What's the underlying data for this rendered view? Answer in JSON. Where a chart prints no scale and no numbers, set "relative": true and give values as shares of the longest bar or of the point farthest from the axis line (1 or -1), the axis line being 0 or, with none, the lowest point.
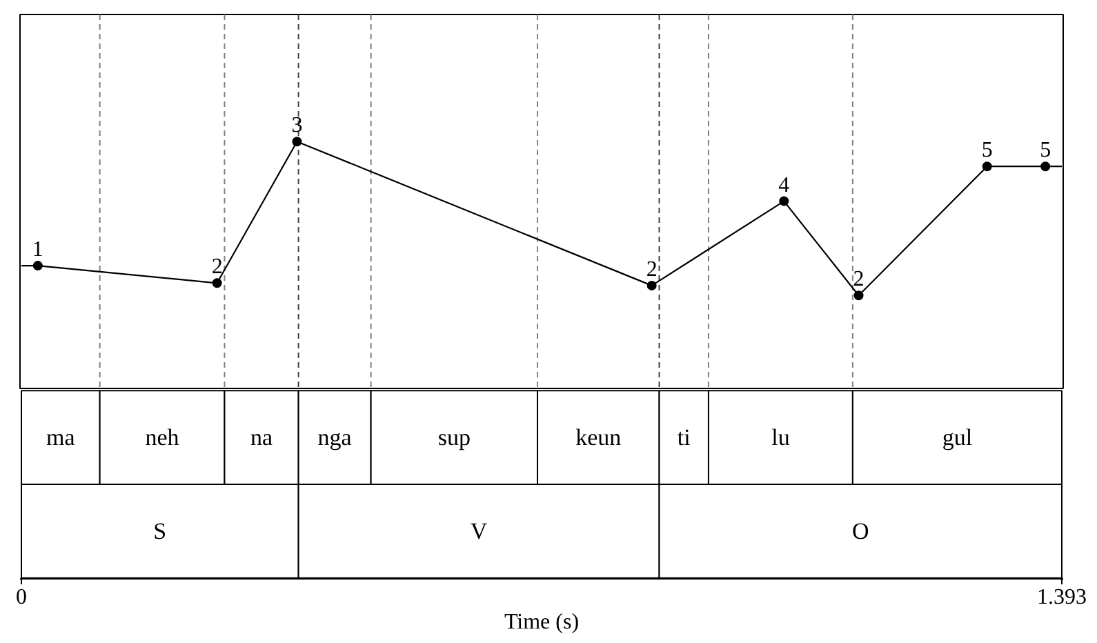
{
  "chart_data": [
    {
      "type": "line",
      "relative": true,
      "xlim": [
        0,
        1.393
      ],
      "tick_labels": false,
      "series": [
        {
          "type": "line",
          "color": "#000000",
          "marker": "none",
          "x": [
            0,
            0.022,
            0.262,
            0.369,
            0.844,
            1.021,
            1.121,
            1.293,
            1.371,
            1.393
          ],
          "values": [
            0.5,
            0.5,
            0.43,
            1,
            0.42,
            0.76,
            0.38,
            0.9,
            0.9,
            0.9
          ]
        },
        {
          "type": "scatter",
          "color": "#000000",
          "marker": "circle",
          "x": [
            0.022,
            0.262,
            0.369,
            0.844,
            1.021,
            1.121,
            1.293,
            1.371
          ],
          "values": [
            0.5,
            0.43,
            1,
            0.42,
            0.76,
            0.38,
            0.9,
            0.9
          ]
        }
      ],
      "annotations": [
        {
          "text": "1",
          "x": 0.022,
          "y": 0.5
        },
        {
          "text": "2",
          "x": 0.262,
          "y": 0.43
        },
        {
          "text": "3",
          "x": 0.369,
          "y": 1
        },
        {
          "text": "2",
          "x": 0.844,
          "y": 0.42
        },
        {
          "text": "4",
          "x": 1.021,
          "y": 0.76
        },
        {
          "text": "2",
          "x": 1.121,
          "y": 0.38
        },
        {
          "text": "5",
          "x": 1.293,
          "y": 0.9
        },
        {
          "text": "5",
          "x": 1.371,
          "y": 0.9
        }
      ],
      "ref_lines": [
        {
          "axis": "x",
          "value": 0.105,
          "line_style": "dashed",
          "color": "#808080"
        },
        {
          "axis": "x",
          "value": 0.272,
          "line_style": "dashed",
          "color": "#808080"
        },
        {
          "axis": "x",
          "value": 0.371,
          "line_style": "dashed",
          "color": "#404040"
        },
        {
          "axis": "x",
          "value": 0.468,
          "line_style": "dashed",
          "color": "#808080"
        },
        {
          "axis": "x",
          "value": 0.691,
          "line_style": "dashed",
          "color": "#808080"
        },
        {
          "axis": "x",
          "value": 0.854,
          "line_style": "dashed",
          "color": "#404040"
        },
        {
          "axis": "x",
          "value": 0.92,
          "line_style": "dashed",
          "color": "#808080"
        },
        {
          "axis": "x",
          "value": 1.113,
          "line_style": "dashed",
          "color": "#808080"
        }
      ]
    },
    {
      "type": "bar",
      "orientation": "horizontal",
      "stacked": true,
      "categories": [
        null,
        null
      ],
      "xlim": [
        0,
        1.393
      ],
      "xticks": [
        0,
        1.393
      ],
      "xlabel": "Time (s)",
      "tick_labels": "x",
      "series": [
        {
          "name": "ma",
          "color": "#ffffff",
          "values": [
            0.105,
            null
          ]
        },
        {
          "name": "neh",
          "color": "#ffffff",
          "values": [
            0.167,
            null
          ]
        },
        {
          "name": "na",
          "color": "#ffffff",
          "values": [
            0.099,
            null
          ]
        },
        {
          "name": "nga",
          "color": "#ffffff",
          "values": [
            0.097,
            null
          ]
        },
        {
          "name": "sup",
          "color": "#ffffff",
          "values": [
            0.223,
            null
          ]
        },
        {
          "name": "keun",
          "color": "#ffffff",
          "values": [
            0.163,
            null
          ]
        },
        {
          "name": "ti",
          "color": "#ffffff",
          "values": [
            0.066,
            null
          ]
        },
        {
          "name": "lu",
          "color": "#ffffff",
          "values": [
            0.193,
            null
          ]
        },
        {
          "name": "gul",
          "color": "#ffffff",
          "values": [
            0.28,
            null
          ]
        },
        {
          "name": "S",
          "color": "#ffffff",
          "values": [
            null,
            0.371
          ]
        },
        {
          "name": "V",
          "color": "#ffffff",
          "values": [
            null,
            0.483
          ]
        },
        {
          "name": "O",
          "color": "#ffffff",
          "values": [
            null,
            0.539
          ]
        }
      ]
    }
  ]
}
